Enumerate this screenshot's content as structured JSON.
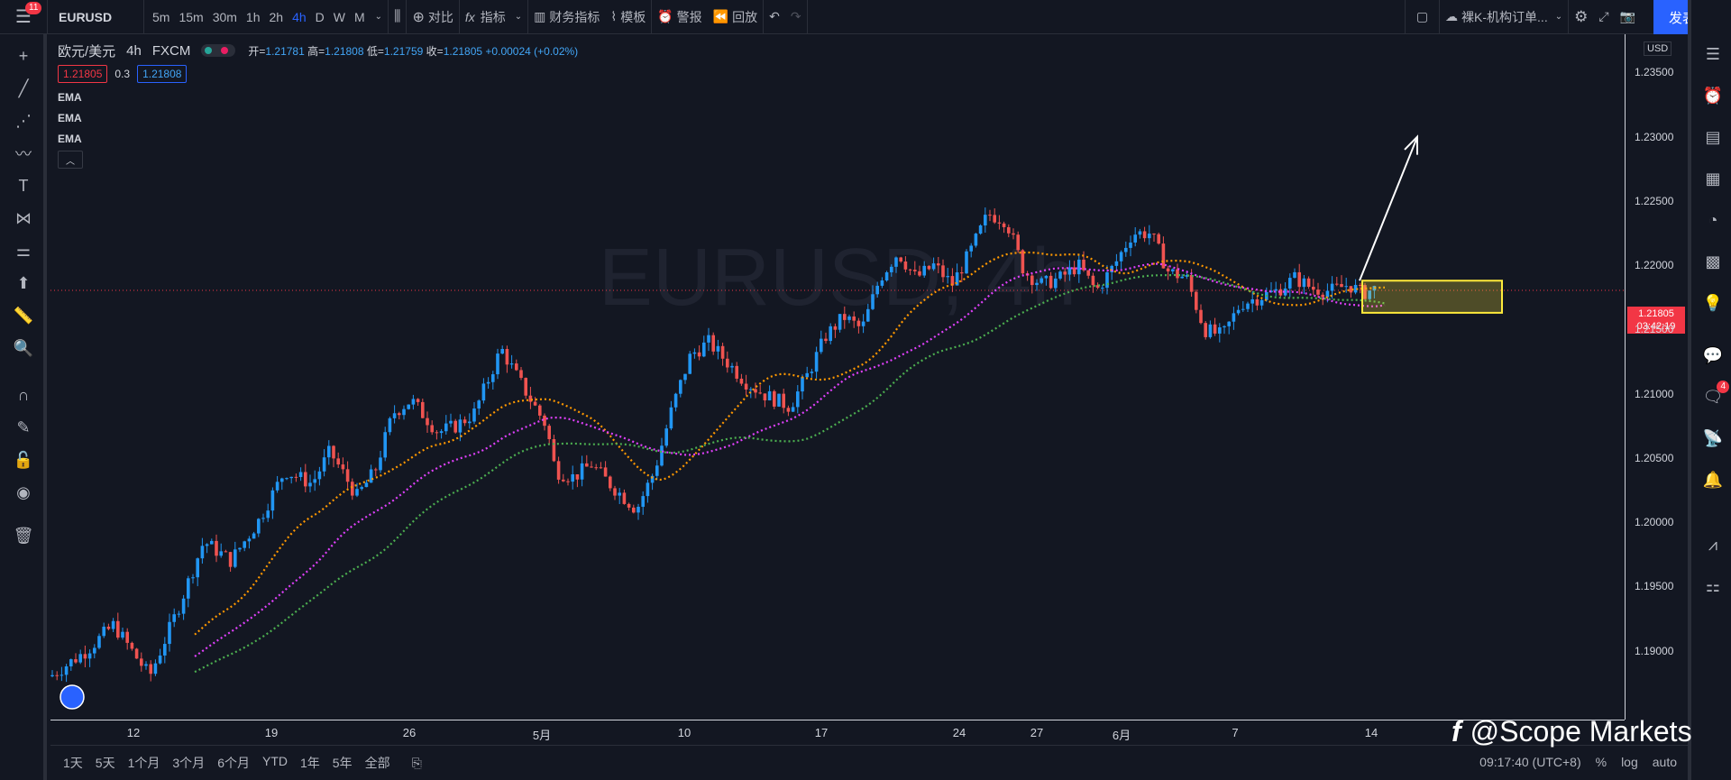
{
  "topbar": {
    "menu_badge": "11",
    "symbol": "EURUSD",
    "intervals": [
      "5m",
      "15m",
      "30m",
      "1h",
      "2h",
      "4h",
      "D",
      "W",
      "M"
    ],
    "active_interval": "4h",
    "compare": "对比",
    "indicators": "指标",
    "financials": "财务指标",
    "templates": "模板",
    "alert": "警报",
    "replay": "回放",
    "layout_name": "裸K-机构订单...",
    "publish": "发表"
  },
  "legend": {
    "title": "欧元/美元",
    "interval": "4h",
    "source": "FXCM",
    "open_label": "开",
    "open": "1.21781",
    "high_label": "高",
    "high": "1.21808",
    "low_label": "低",
    "low": "1.21759",
    "close_label": "收",
    "close": "1.21805",
    "change": "+0.00024 (+0.02%)",
    "bid": "1.21805",
    "spread": "0.3",
    "ask": "1.21808",
    "indicators": [
      "EMA",
      "EMA",
      "EMA"
    ]
  },
  "price_axis": {
    "currency": "USD",
    "labels": [
      "1.23500",
      "1.23000",
      "1.22500",
      "1.22000",
      "1.21500",
      "1.21000",
      "1.20500",
      "1.20000",
      "1.19500",
      "1.19000"
    ],
    "current_price": "1.21805",
    "countdown": "03:42:19"
  },
  "time_axis": {
    "labels": [
      "12",
      "19",
      "26",
      "5月",
      "10",
      "17",
      "24",
      "27",
      "6月",
      "7",
      "14"
    ]
  },
  "chart_data": {
    "type": "candlestick",
    "symbol": "EURUSD",
    "ylim": [
      1.186,
      1.239
    ],
    "ema_colors": {
      "ema1": "#ff9800",
      "ema2": "#e040fb",
      "ema3": "#4caf50"
    },
    "annotations": {
      "rectangle": {
        "x_start": 1455,
        "x_end": 1610,
        "y_low": 1.2163,
        "y_high": 1.2188,
        "color": "#ffeb3b"
      },
      "arrow": "up-arrow"
    },
    "watermark": "EURUSD, 4h"
  },
  "bottom": {
    "ranges": [
      "1天",
      "5天",
      "1个月",
      "3个月",
      "6个月",
      "YTD",
      "1年",
      "5年",
      "全部"
    ],
    "time": "09:17:40 (UTC+8)",
    "percent": "%",
    "log": "log",
    "auto": "auto"
  },
  "brand_watermark": "@Scope Markets",
  "colors": {
    "up": "#2196f3",
    "down": "#ef5350",
    "accent": "#2962ff"
  }
}
